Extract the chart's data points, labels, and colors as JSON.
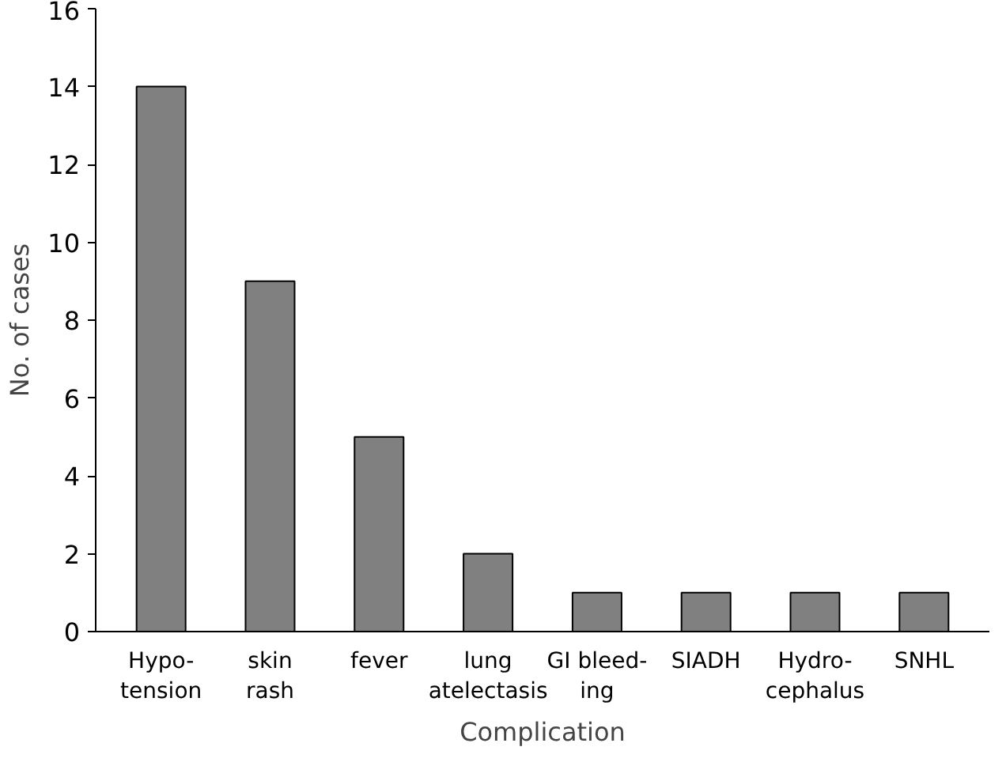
{
  "chart_data": {
    "type": "bar",
    "xlabel": "Complication",
    "ylabel": "No. of cases",
    "categories": [
      "Hypo-\ntension",
      "skin\nrash",
      "fever",
      "lung\natelectasis",
      "GI bleed-\ning",
      "SIADH",
      "Hydro-\ncephalus",
      "SNHL"
    ],
    "values": [
      14,
      9,
      5,
      2,
      1,
      1,
      1,
      1
    ],
    "color": "#808080",
    "ylim": [
      0,
      16
    ],
    "yticks": [
      0,
      2,
      4,
      6,
      8,
      10,
      12,
      14,
      16
    ],
    "grid": false
  }
}
